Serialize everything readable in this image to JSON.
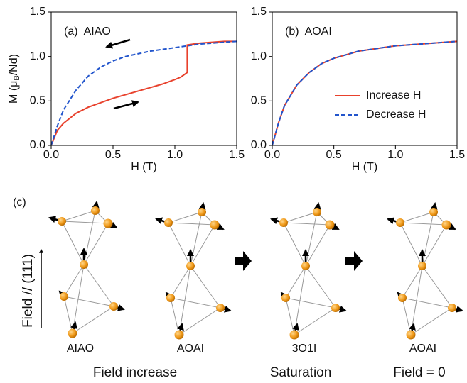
{
  "chart_data": [
    {
      "type": "line",
      "annotation": "(a)  AIAO",
      "xlabel": "H (T)",
      "ylabel_parts": [
        "M (μ",
        "B",
        "/Nd)"
      ],
      "x": [
        0,
        0.05,
        0.1,
        0.2,
        0.3,
        0.4,
        0.5,
        0.6,
        0.7,
        0.8,
        0.9,
        1.0,
        1.05,
        1.1,
        1.1,
        1.2,
        1.3,
        1.4,
        1.5
      ],
      "series": [
        {
          "color": "#e8412c",
          "linestyle": "solid",
          "values": [
            0,
            0.17,
            0.25,
            0.36,
            0.43,
            0.48,
            0.53,
            0.57,
            0.61,
            0.65,
            0.69,
            0.74,
            0.77,
            0.82,
            1.13,
            1.15,
            1.16,
            1.17,
            1.17
          ]
        },
        {
          "color": "#2255cc",
          "linestyle": "dashed",
          "values": [
            0,
            0.22,
            0.4,
            0.62,
            0.78,
            0.88,
            0.95,
            1.0,
            1.03,
            1.06,
            1.08,
            1.1,
            1.11,
            1.12,
            1.12,
            1.14,
            1.15,
            1.16,
            1.17
          ]
        }
      ],
      "xlim": [
        0,
        1.5
      ],
      "ylim": [
        0,
        1.5
      ],
      "xticks": [
        {
          "value": 0,
          "label": "0.0"
        },
        0.5,
        {
          "value": 1,
          "label": "1.0"
        },
        1.5
      ],
      "yticks": [
        {
          "value": 0,
          "label": "0.0"
        },
        0.5,
        {
          "value": 1,
          "label": "1.0"
        },
        1.5
      ]
    },
    {
      "type": "line",
      "annotation": "(b)  AOAI",
      "xlabel": "H (T)",
      "x": [
        0,
        0.05,
        0.1,
        0.2,
        0.3,
        0.4,
        0.5,
        0.6,
        0.7,
        0.8,
        0.9,
        1.0,
        1.1,
        1.2,
        1.3,
        1.4,
        1.5
      ],
      "series": [
        {
          "name": "Increase H",
          "color": "#e8412c",
          "linestyle": "solid",
          "values": [
            0,
            0.25,
            0.45,
            0.68,
            0.82,
            0.92,
            0.98,
            1.02,
            1.06,
            1.08,
            1.1,
            1.12,
            1.13,
            1.14,
            1.15,
            1.16,
            1.17
          ]
        },
        {
          "name": "Decrease H",
          "color": "#2255cc",
          "linestyle": "dashed",
          "values": [
            0,
            0.25,
            0.45,
            0.68,
            0.82,
            0.92,
            0.98,
            1.02,
            1.06,
            1.08,
            1.1,
            1.12,
            1.13,
            1.14,
            1.15,
            1.16,
            1.17
          ]
        }
      ],
      "xlim": [
        0,
        1.5
      ],
      "ylim": [
        0,
        1.5
      ],
      "legend": "lower right",
      "xticks": [
        {
          "value": 0,
          "label": "0.0"
        },
        0.5,
        {
          "value": 1,
          "label": "1.0"
        },
        1.5
      ],
      "yticks": [
        {
          "value": 0,
          "label": "0.0"
        },
        0.5,
        {
          "value": 1,
          "label": "1.0"
        },
        1.5
      ]
    }
  ],
  "panel_c": {
    "label": "(c)",
    "field_axis": "Field // (111)",
    "states": [
      "AIAO",
      "AOAI",
      "3O1I",
      "AOAI"
    ],
    "stages": [
      "Field increase",
      "Saturation",
      "Field = 0"
    ]
  }
}
